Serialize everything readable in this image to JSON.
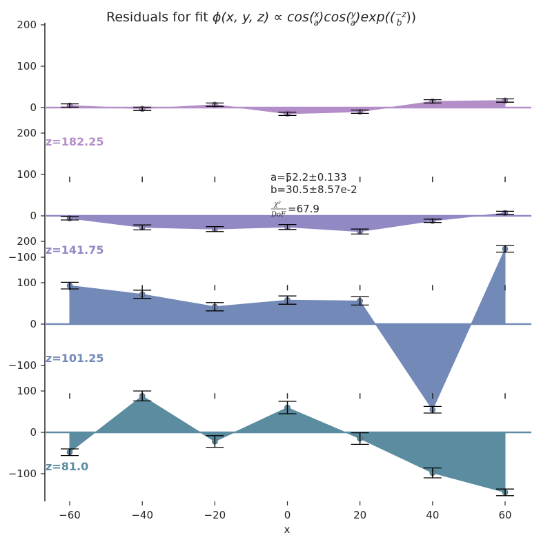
{
  "chart_data": {
    "type": "area",
    "title": "Residuals for fit ϕ(x,y,z) ∝ cos(x/a)cos(y/a)exp((−z/b))",
    "title_parts": {
      "prefix": "Residuals for fit ",
      "phi_expr": "ϕ(x, y, z) ∝ ",
      "func": "cos(",
      "x": "x",
      "y": "y",
      "z": "−z",
      "a": "a",
      "b": "b",
      "cos2": ")cos(",
      "exp": ")exp((",
      "close": "))"
    },
    "xlabel": "x",
    "x_ticks": [
      "−60",
      "−40",
      "−20",
      "0",
      "20",
      "40",
      "60"
    ],
    "x_tick_values": [
      -60,
      -40,
      -20,
      0,
      20,
      40,
      60
    ],
    "xlim": [
      -66,
      67
    ],
    "ylim": [
      -120,
      220
    ],
    "y_ticks": [
      "−100",
      "0",
      "100",
      "200"
    ],
    "y_tick_values": [
      -100,
      0,
      100,
      200
    ],
    "x": [
      -60,
      -40,
      -20,
      0,
      20,
      40,
      60
    ],
    "panels": [
      {
        "z_label": "z=182.25",
        "color": "#b48ec8",
        "values": [
          5,
          -3,
          7,
          -15,
          -10,
          15,
          17
        ],
        "errors": [
          3,
          3,
          3,
          3,
          3,
          3,
          3
        ],
        "y_ticks": [
          "0",
          "100",
          "200"
        ]
      },
      {
        "z_label": "z=141.75",
        "color": "#9189c4",
        "values": [
          -6,
          -28,
          -32,
          -27,
          -38,
          -12,
          7
        ],
        "errors": [
          3,
          6,
          6,
          6,
          6,
          4,
          4
        ],
        "y_ticks": [
          "−100",
          "0",
          "100",
          "200"
        ]
      },
      {
        "z_label": "z=101.25",
        "color": "#7389b8",
        "values": [
          93,
          72,
          42,
          58,
          56,
          -207,
          182
        ],
        "errors": [
          8,
          10,
          10,
          10,
          10,
          8,
          8
        ],
        "y_ticks": [
          "−100",
          "0",
          "100",
          "200"
        ]
      },
      {
        "z_label": "z=81.0",
        "color": "#5b8ca0",
        "values": [
          -48,
          88,
          -22,
          60,
          -15,
          -98,
          -145
        ],
        "errors": [
          8,
          12,
          14,
          15,
          14,
          12,
          8
        ],
        "y_ticks": [
          "−100",
          "0",
          "100"
        ]
      }
    ],
    "annotation": {
      "a_text": "a=52.2±0.133",
      "b_text": "b=30.5±8.57e-2",
      "chi_num": "χ²",
      "chi_den": "DoF",
      "chi_value": "=67.9"
    }
  }
}
